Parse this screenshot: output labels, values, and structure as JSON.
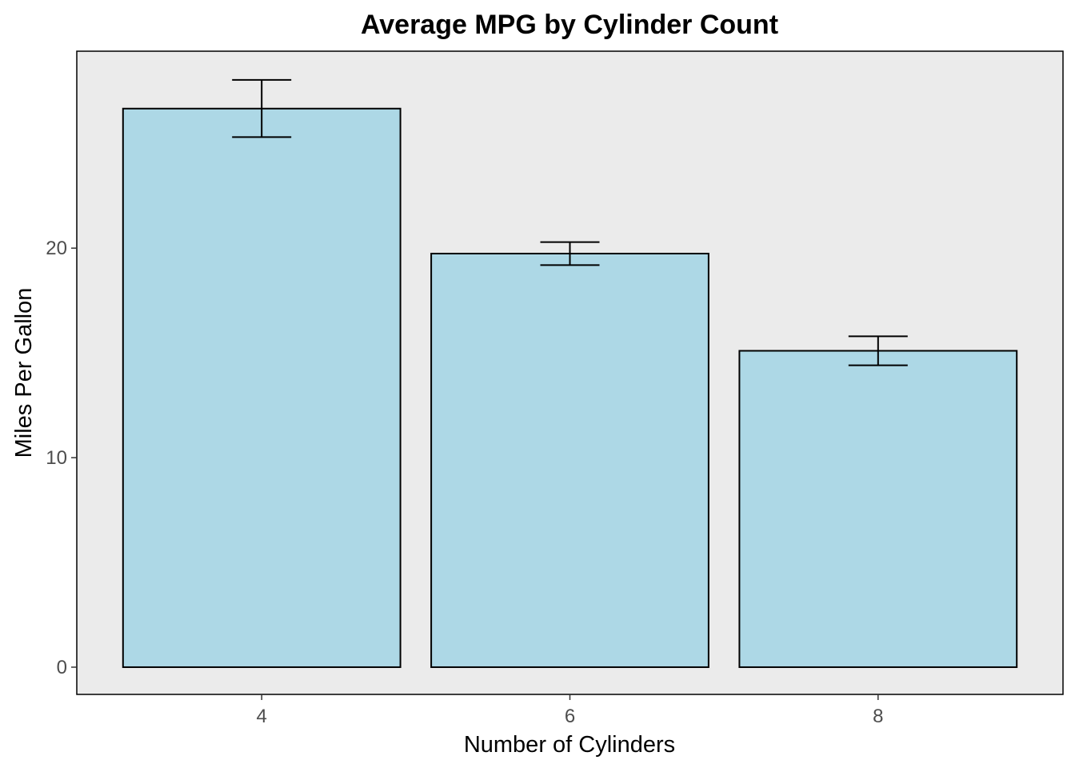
{
  "chart_data": {
    "type": "bar",
    "title": "Average MPG by Cylinder Count",
    "xlabel": "Number of Cylinders",
    "ylabel": "Miles Per Gallon",
    "categories": [
      "4",
      "6",
      "8"
    ],
    "values": [
      26.66,
      19.74,
      15.1
    ],
    "error_bars": [
      {
        "low": 25.3,
        "high": 28.03
      },
      {
        "low": 19.19,
        "high": 20.29
      },
      {
        "low": 14.41,
        "high": 15.79
      }
    ],
    "ylim": [
      -1.3,
      29.4
    ],
    "yticks": [
      0,
      10,
      20
    ],
    "ytick_labels": [
      "0",
      "10",
      "20"
    ],
    "grid": false,
    "legend": "none",
    "colors": {
      "bar_fill": "#add8e6",
      "bar_stroke": "#000000",
      "panel_background": "#ebebeb",
      "panel_border": "#000000",
      "error_bar": "#000000",
      "tick_label": "#4d4d4d"
    }
  }
}
